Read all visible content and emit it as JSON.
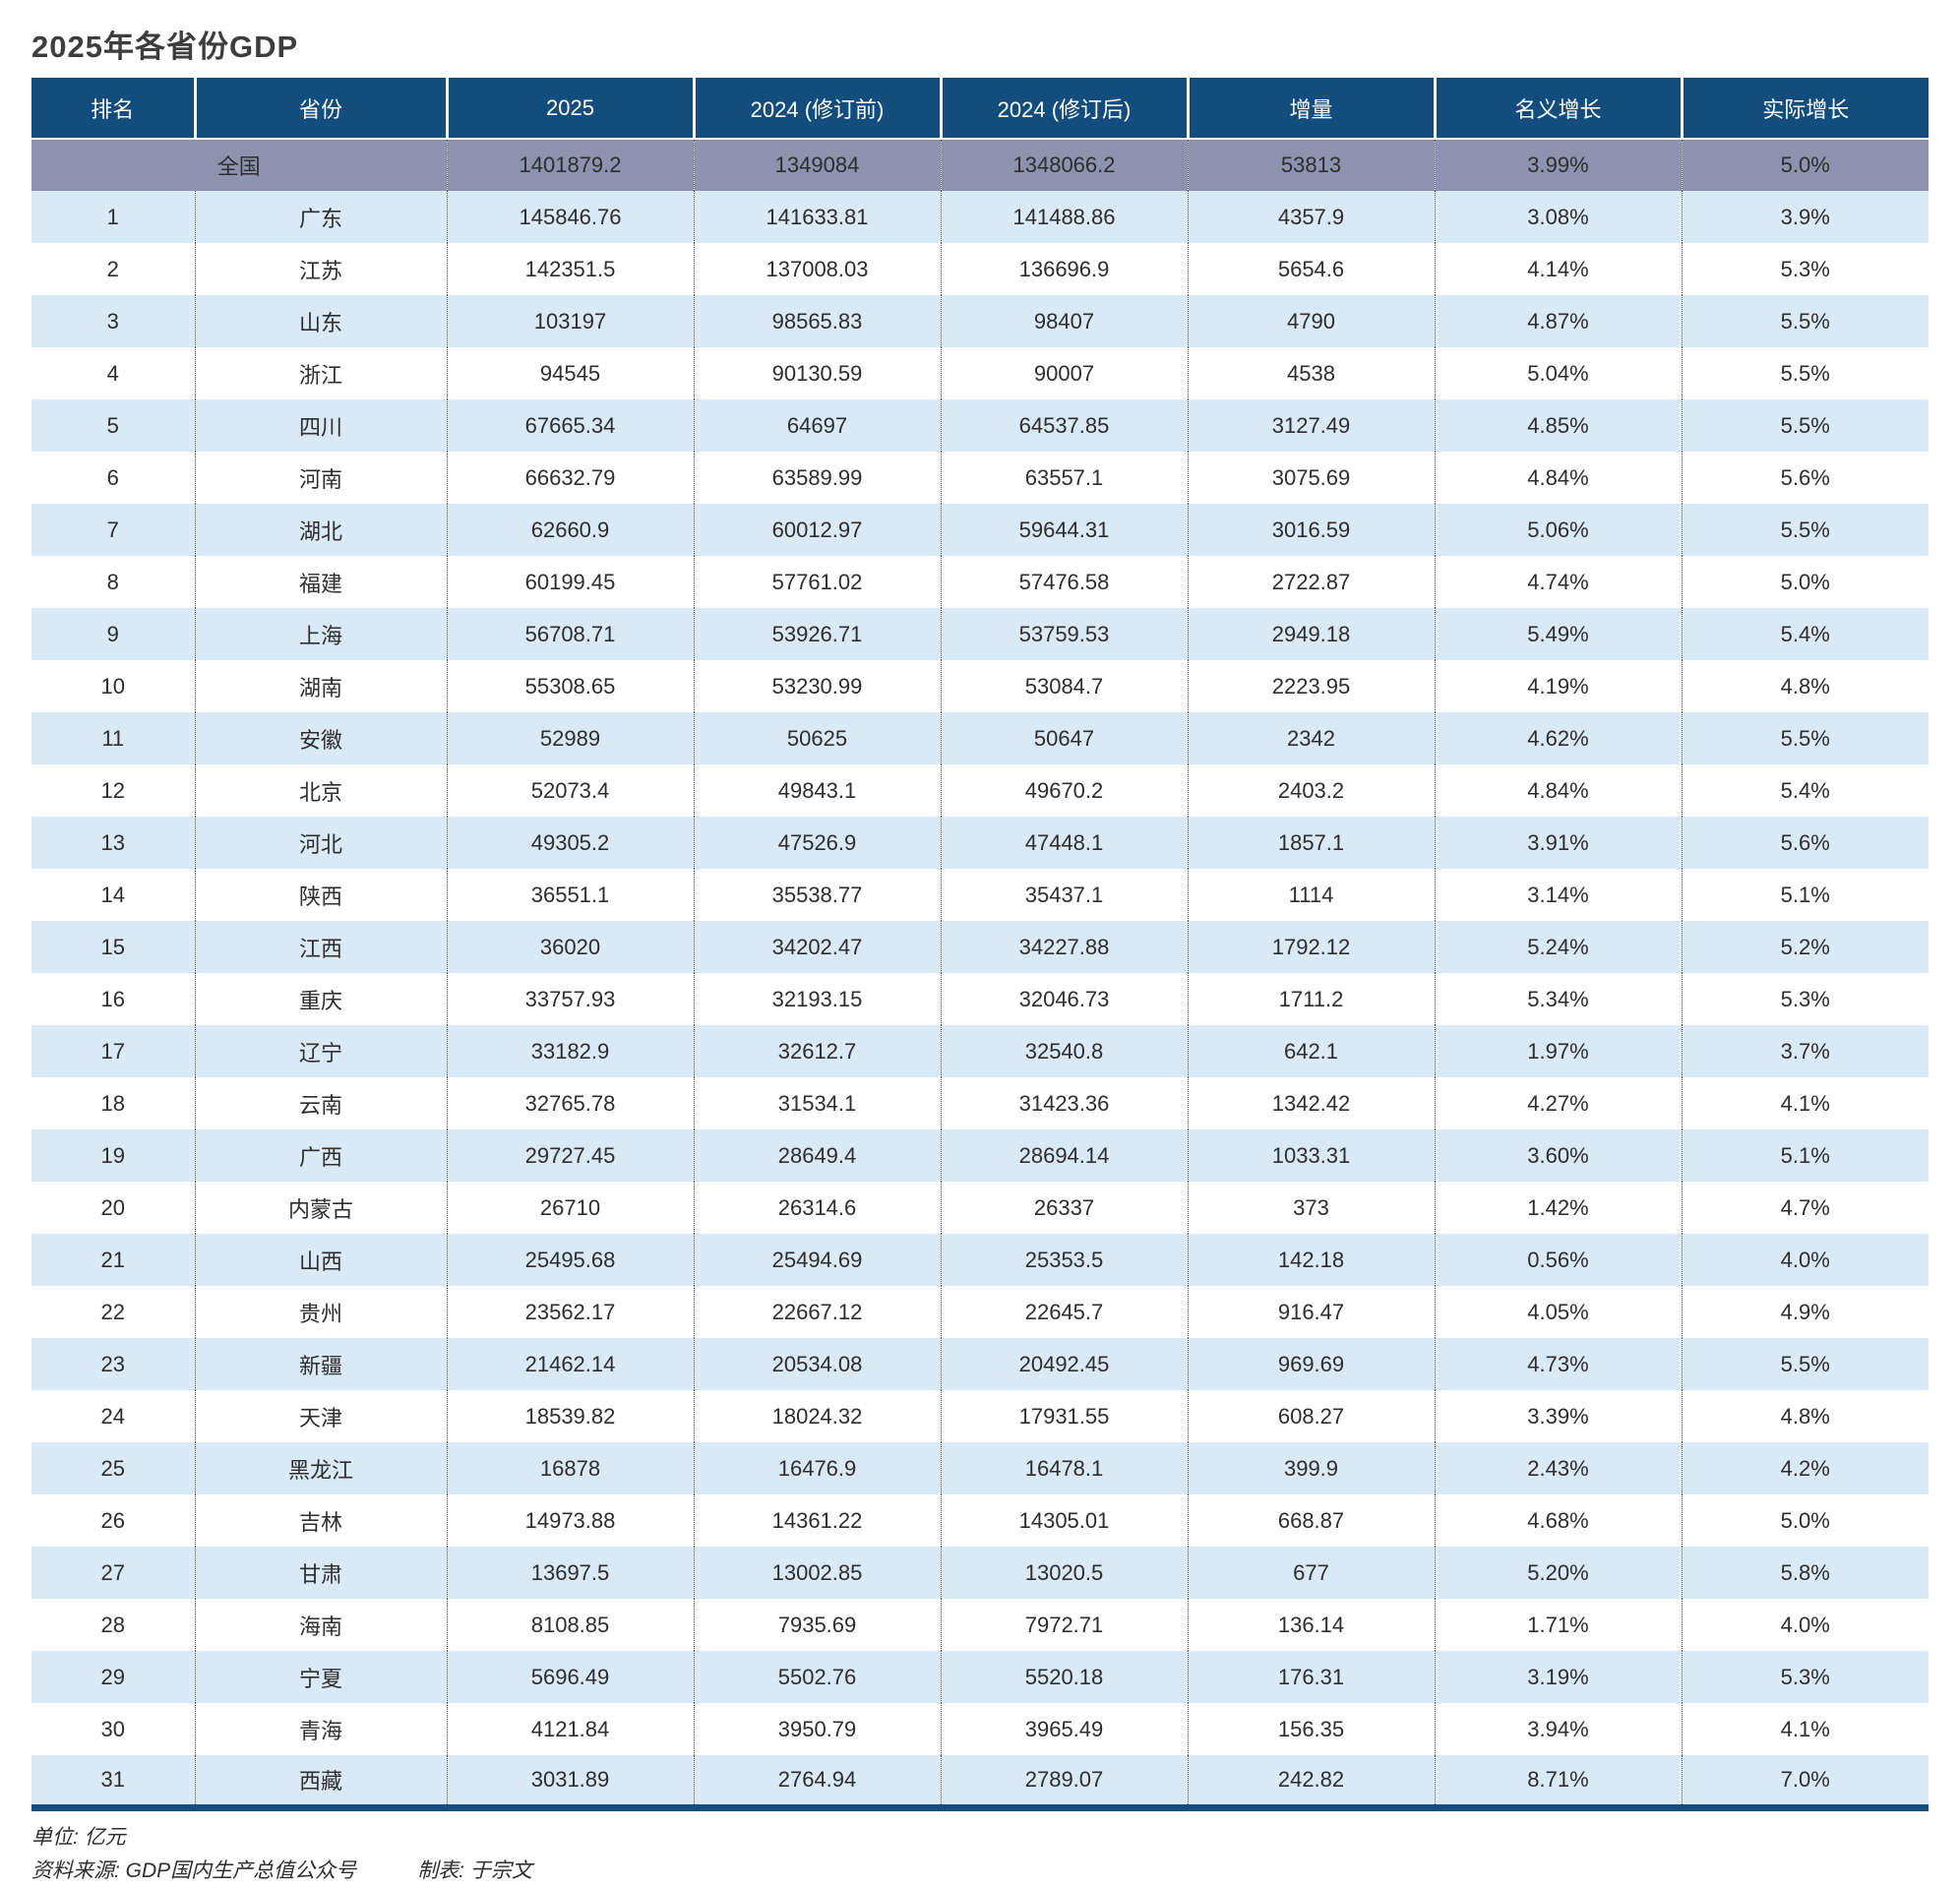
{
  "title": "2025年各省份GDP",
  "colors": {
    "header_bg": "#134d7e",
    "national_row_bg": "#8d93af",
    "alt_row_bg": "#d9e9f6",
    "row_bg": "#ffffff",
    "header_text": "#ffffff",
    "body_text": "#2e2e2e",
    "bottom_border": "#134d7e"
  },
  "footer": {
    "unit": "单位: 亿元",
    "source": "资料来源: GDP国内生产总值公众号",
    "maker": "制表: 于宗文"
  },
  "chart_data": {
    "type": "table",
    "title": "2025年各省份GDP",
    "unit": "亿元",
    "columns": [
      "排名",
      "省份",
      "2025",
      "2024 (修订前)",
      "2024 (修订后)",
      "增量",
      "名义增长",
      "实际增长"
    ],
    "national": [
      "",
      "全国",
      "1401879.2",
      "1349084",
      "1348066.2",
      "53813",
      "3.99%",
      "5.0%"
    ],
    "rows": [
      [
        "1",
        "广东",
        "145846.76",
        "141633.81",
        "141488.86",
        "4357.9",
        "3.08%",
        "3.9%"
      ],
      [
        "2",
        "江苏",
        "142351.5",
        "137008.03",
        "136696.9",
        "5654.6",
        "4.14%",
        "5.3%"
      ],
      [
        "3",
        "山东",
        "103197",
        "98565.83",
        "98407",
        "4790",
        "4.87%",
        "5.5%"
      ],
      [
        "4",
        "浙江",
        "94545",
        "90130.59",
        "90007",
        "4538",
        "5.04%",
        "5.5%"
      ],
      [
        "5",
        "四川",
        "67665.34",
        "64697",
        "64537.85",
        "3127.49",
        "4.85%",
        "5.5%"
      ],
      [
        "6",
        "河南",
        "66632.79",
        "63589.99",
        "63557.1",
        "3075.69",
        "4.84%",
        "5.6%"
      ],
      [
        "7",
        "湖北",
        "62660.9",
        "60012.97",
        "59644.31",
        "3016.59",
        "5.06%",
        "5.5%"
      ],
      [
        "8",
        "福建",
        "60199.45",
        "57761.02",
        "57476.58",
        "2722.87",
        "4.74%",
        "5.0%"
      ],
      [
        "9",
        "上海",
        "56708.71",
        "53926.71",
        "53759.53",
        "2949.18",
        "5.49%",
        "5.4%"
      ],
      [
        "10",
        "湖南",
        "55308.65",
        "53230.99",
        "53084.7",
        "2223.95",
        "4.19%",
        "4.8%"
      ],
      [
        "11",
        "安徽",
        "52989",
        "50625",
        "50647",
        "2342",
        "4.62%",
        "5.5%"
      ],
      [
        "12",
        "北京",
        "52073.4",
        "49843.1",
        "49670.2",
        "2403.2",
        "4.84%",
        "5.4%"
      ],
      [
        "13",
        "河北",
        "49305.2",
        "47526.9",
        "47448.1",
        "1857.1",
        "3.91%",
        "5.6%"
      ],
      [
        "14",
        "陕西",
        "36551.1",
        "35538.77",
        "35437.1",
        "1114",
        "3.14%",
        "5.1%"
      ],
      [
        "15",
        "江西",
        "36020",
        "34202.47",
        "34227.88",
        "1792.12",
        "5.24%",
        "5.2%"
      ],
      [
        "16",
        "重庆",
        "33757.93",
        "32193.15",
        "32046.73",
        "1711.2",
        "5.34%",
        "5.3%"
      ],
      [
        "17",
        "辽宁",
        "33182.9",
        "32612.7",
        "32540.8",
        "642.1",
        "1.97%",
        "3.7%"
      ],
      [
        "18",
        "云南",
        "32765.78",
        "31534.1",
        "31423.36",
        "1342.42",
        "4.27%",
        "4.1%"
      ],
      [
        "19",
        "广西",
        "29727.45",
        "28649.4",
        "28694.14",
        "1033.31",
        "3.60%",
        "5.1%"
      ],
      [
        "20",
        "内蒙古",
        "26710",
        "26314.6",
        "26337",
        "373",
        "1.42%",
        "4.7%"
      ],
      [
        "21",
        "山西",
        "25495.68",
        "25494.69",
        "25353.5",
        "142.18",
        "0.56%",
        "4.0%"
      ],
      [
        "22",
        "贵州",
        "23562.17",
        "22667.12",
        "22645.7",
        "916.47",
        "4.05%",
        "4.9%"
      ],
      [
        "23",
        "新疆",
        "21462.14",
        "20534.08",
        "20492.45",
        "969.69",
        "4.73%",
        "5.5%"
      ],
      [
        "24",
        "天津",
        "18539.82",
        "18024.32",
        "17931.55",
        "608.27",
        "3.39%",
        "4.8%"
      ],
      [
        "25",
        "黑龙江",
        "16878",
        "16476.9",
        "16478.1",
        "399.9",
        "2.43%",
        "4.2%"
      ],
      [
        "26",
        "吉林",
        "14973.88",
        "14361.22",
        "14305.01",
        "668.87",
        "4.68%",
        "5.0%"
      ],
      [
        "27",
        "甘肃",
        "13697.5",
        "13002.85",
        "13020.5",
        "677",
        "5.20%",
        "5.8%"
      ],
      [
        "28",
        "海南",
        "8108.85",
        "7935.69",
        "7972.71",
        "136.14",
        "1.71%",
        "4.0%"
      ],
      [
        "29",
        "宁夏",
        "5696.49",
        "5502.76",
        "5520.18",
        "176.31",
        "3.19%",
        "5.3%"
      ],
      [
        "30",
        "青海",
        "4121.84",
        "3950.79",
        "3965.49",
        "156.35",
        "3.94%",
        "4.1%"
      ],
      [
        "31",
        "西藏",
        "3031.89",
        "2764.94",
        "2789.07",
        "242.82",
        "8.71%",
        "7.0%"
      ]
    ]
  }
}
